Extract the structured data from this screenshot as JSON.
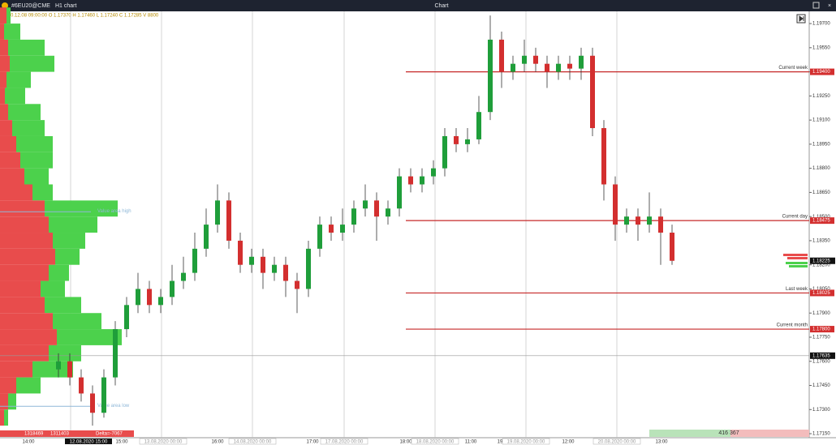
{
  "toolbar": {
    "symbol": "#6EU20@CME",
    "timeframe": "H1 chart",
    "title": "Chart"
  },
  "info_line": "2020.12.08 09:00:00 O 1.17370 H 1.17460 L 1.17240 C 1.17285 V 8800",
  "chart_data": {
    "type": "candlestick",
    "ylim": [
      1.17125,
      1.19776
    ],
    "yticks": [
      {
        "value": 1.197,
        "label": "1.19700"
      },
      {
        "value": 1.1955,
        "label": "1.19550"
      },
      {
        "value": 1.194,
        "label": "1.19400"
      },
      {
        "value": 1.1925,
        "label": "1.19250"
      },
      {
        "value": 1.191,
        "label": "1.19100"
      },
      {
        "value": 1.1895,
        "label": "1.18950"
      },
      {
        "value": 1.188,
        "label": "1.18800"
      },
      {
        "value": 1.1865,
        "label": "1.18650"
      },
      {
        "value": 1.185,
        "label": "1.18500"
      },
      {
        "value": 1.1835,
        "label": "1.18350"
      },
      {
        "value": 1.182,
        "label": "1.18200"
      },
      {
        "value": 1.1805,
        "label": "1.18050"
      },
      {
        "value": 1.179,
        "label": "1.17900"
      },
      {
        "value": 1.1775,
        "label": "1.17750"
      },
      {
        "value": 1.176,
        "label": "1.17600"
      },
      {
        "value": 1.1745,
        "label": "1.17450"
      },
      {
        "value": 1.173,
        "label": "1.17300"
      },
      {
        "value": 1.1715,
        "label": "1.17150"
      }
    ],
    "time_labels": [
      "14:00",
      "15:00",
      "16:00",
      "17:00",
      "18:00",
      "11:00",
      "19",
      "12:00",
      "13:00"
    ],
    "date_labels": [
      "13.08.2020 00:00",
      "14.08.2020 00:00",
      "17.08.2020 00:00",
      "18.08.2020 00:00",
      "19.08.2020 00:00",
      "20.08.2020 00:00"
    ],
    "cursor_date": "12.08.2020 15:00",
    "open": [
      1.1755,
      1.176,
      1.175,
      1.174,
      1.1728,
      1.175,
      1.178,
      1.1795,
      1.1805,
      1.1795,
      1.18,
      1.181,
      1.1815,
      1.183,
      1.1845,
      1.186,
      1.1835,
      1.182,
      1.1825,
      1.1815,
      1.182,
      1.181,
      1.1805,
      1.183,
      1.1845,
      1.184,
      1.1845,
      1.1855,
      1.186,
      1.185,
      1.1855,
      1.1875,
      1.187,
      1.1875,
      1.188,
      1.19,
      1.1895,
      1.1898,
      1.1915,
      1.196,
      1.194,
      1.1945,
      1.195,
      1.1945,
      1.194,
      1.1945,
      1.1942,
      1.195,
      1.1905,
      1.187,
      1.1845,
      1.185,
      1.1845,
      1.185,
      1.184
    ],
    "high": [
      1.1765,
      1.1765,
      1.1755,
      1.1745,
      1.1755,
      1.1785,
      1.18,
      1.1815,
      1.181,
      1.1805,
      1.182,
      1.1825,
      1.184,
      1.1855,
      1.187,
      1.1865,
      1.184,
      1.183,
      1.183,
      1.1825,
      1.1825,
      1.1815,
      1.1835,
      1.185,
      1.185,
      1.1855,
      1.186,
      1.187,
      1.1865,
      1.186,
      1.188,
      1.188,
      1.188,
      1.1885,
      1.1905,
      1.1905,
      1.1905,
      1.1925,
      1.1975,
      1.1965,
      1.195,
      1.196,
      1.1955,
      1.195,
      1.195,
      1.195,
      1.1955,
      1.1955,
      1.191,
      1.1875,
      1.1855,
      1.1855,
      1.1865,
      1.1855,
      1.1845
    ],
    "low": [
      1.175,
      1.1745,
      1.1735,
      1.172,
      1.1725,
      1.1745,
      1.1775,
      1.179,
      1.179,
      1.179,
      1.1795,
      1.1805,
      1.181,
      1.1825,
      1.184,
      1.183,
      1.1815,
      1.1815,
      1.1805,
      1.181,
      1.18,
      1.179,
      1.18,
      1.1825,
      1.1835,
      1.1835,
      1.184,
      1.185,
      1.1835,
      1.1845,
      1.185,
      1.1865,
      1.1865,
      1.187,
      1.1875,
      1.189,
      1.189,
      1.1895,
      1.191,
      1.193,
      1.1935,
      1.194,
      1.194,
      1.193,
      1.1935,
      1.1935,
      1.1935,
      1.19,
      1.186,
      1.1835,
      1.184,
      1.1835,
      1.184,
      1.182,
      1.182
    ],
    "close": [
      1.176,
      1.175,
      1.174,
      1.1728,
      1.175,
      1.178,
      1.1795,
      1.1805,
      1.1795,
      1.18,
      1.181,
      1.1815,
      1.183,
      1.1845,
      1.186,
      1.1835,
      1.182,
      1.1825,
      1.1815,
      1.182,
      1.181,
      1.1805,
      1.183,
      1.1845,
      1.184,
      1.1845,
      1.1855,
      1.186,
      1.185,
      1.1855,
      1.1875,
      1.187,
      1.1875,
      1.188,
      1.19,
      1.1895,
      1.1898,
      1.1915,
      1.196,
      1.194,
      1.1945,
      1.195,
      1.1945,
      1.194,
      1.1945,
      1.1942,
      1.195,
      1.1905,
      1.187,
      1.1845,
      1.185,
      1.1845,
      1.185,
      1.184,
      1.18225
    ],
    "up_color": "#1f9e3a",
    "down_color": "#d32f2f",
    "levels": [
      {
        "name": "Current week",
        "value": 1.194,
        "label": "1.19400"
      },
      {
        "name": "Current day",
        "value": 1.18475,
        "label": "1.18475"
      },
      {
        "name": "Last week",
        "value": 1.18025,
        "label": "1.18025"
      },
      {
        "name": "Current month",
        "value": 1.178,
        "label": "1.17800"
      }
    ],
    "last_price": {
      "value": 1.18225,
      "label": "1.18225"
    },
    "marker_price": {
      "value": 1.17635,
      "label": "1.17635"
    },
    "profile": {
      "prices": [
        1.1975,
        1.1965,
        1.1955,
        1.1945,
        1.1935,
        1.1925,
        1.1915,
        1.1905,
        1.1895,
        1.1885,
        1.1875,
        1.1865,
        1.1855,
        1.1845,
        1.1835,
        1.1825,
        1.1815,
        1.1805,
        1.1795,
        1.1785,
        1.1775,
        1.1765,
        1.1755,
        1.1745,
        1.1735,
        1.1725
      ],
      "bid": [
        8,
        5,
        10,
        12,
        8,
        6,
        10,
        15,
        20,
        25,
        30,
        40,
        55,
        60,
        65,
        68,
        60,
        50,
        55,
        65,
        70,
        60,
        40,
        20,
        10,
        5
      ],
      "ask": [
        5,
        20,
        45,
        55,
        30,
        25,
        40,
        40,
        45,
        40,
        30,
        25,
        90,
        60,
        40,
        30,
        25,
        30,
        45,
        60,
        80,
        40,
        50,
        30,
        10,
        5
      ],
      "bid_color": "#e84c4c",
      "ask_color": "#4cd14c",
      "value_area_high": {
        "value": 1.1853,
        "label": "Value area high"
      },
      "value_area_low": {
        "value": 1.1732,
        "label": "Value area low"
      },
      "bid_total": "1318469",
      "ask_total": "1311403",
      "delta": "Delta=-7067"
    },
    "bottom_right_volume": "416 367"
  }
}
